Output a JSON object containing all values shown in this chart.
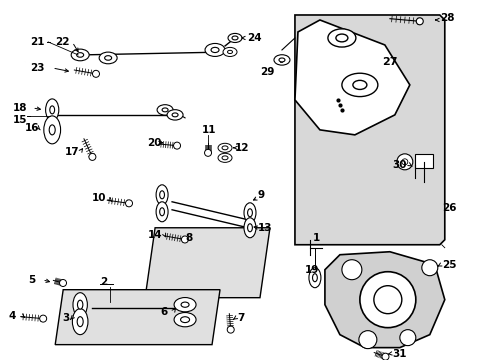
{
  "bg_color": "#ffffff",
  "fig_width": 4.89,
  "fig_height": 3.6,
  "dpi": 100,
  "lc": "#000000",
  "tc": "#000000",
  "fs": 7.5,
  "fs_small": 6.5,
  "parts_shade": "#e8e8e8",
  "box_shade": "#e0e0e0"
}
